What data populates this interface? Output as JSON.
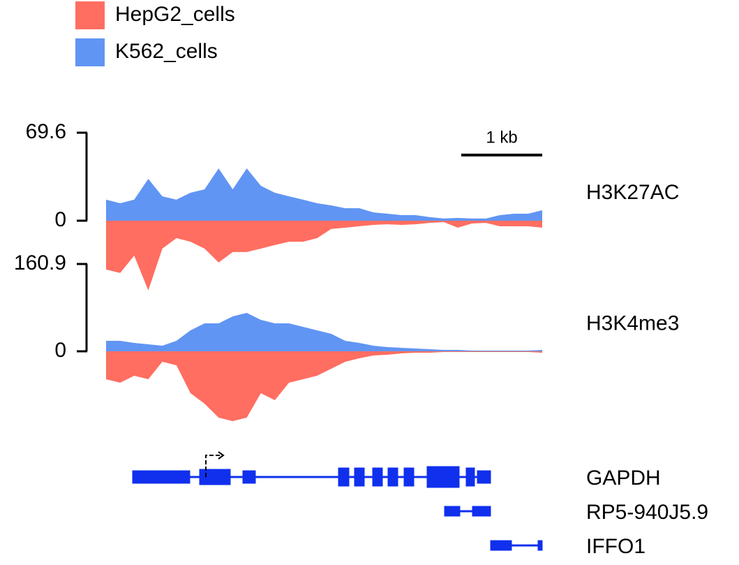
{
  "chart_data": [
    {
      "type": "area",
      "title": "H3K27AC",
      "ylim": [
        0,
        69.6
      ],
      "yticks": [
        0,
        69.6
      ],
      "series": [
        {
          "name": "HepG2_cells",
          "color": "#ff4a3a",
          "values": [
            38.6,
            41.4,
            27.6,
            55.2,
            22.1,
            13.8,
            16.6,
            22.1,
            33.1,
            24.8,
            24.8,
            22.1,
            19.3,
            16.6,
            16.6,
            13.8,
            6.6,
            5.5,
            4.4,
            3.3,
            2.8,
            3.3,
            2.8,
            1.7,
            1.1,
            5.5,
            2.2,
            1.7,
            4.4,
            4.4,
            4.4,
            5.5
          ]
        },
        {
          "name": "K562_cells",
          "color": "#3a7bf0",
          "values": [
            16.6,
            13.8,
            16.6,
            33.1,
            19.3,
            16.6,
            22.1,
            24.8,
            41.4,
            24.8,
            41.4,
            27.6,
            22.1,
            19.3,
            16.6,
            13.8,
            12.1,
            9.9,
            9.9,
            6.6,
            5.5,
            4.4,
            4.4,
            2.8,
            1.7,
            2.2,
            1.7,
            1.7,
            4.4,
            5.5,
            5.5,
            8.3
          ]
        }
      ]
    },
    {
      "type": "area",
      "title": "H3K4me3",
      "ylim": [
        0,
        160.9
      ],
      "yticks": [
        0,
        160.9
      ],
      "series": [
        {
          "name": "HepG2_cells",
          "color": "#ff4a3a",
          "values": [
            51.5,
            57.9,
            45.0,
            51.5,
            19.3,
            25.7,
            77.2,
            96.5,
            122.3,
            128.7,
            122.3,
            77.2,
            90.1,
            57.9,
            51.5,
            45.0,
            32.2,
            19.3,
            12.9,
            7.7,
            6.4,
            3.9,
            2.6,
            2.6,
            1.3,
            1.3,
            1.3,
            1.3,
            1.3,
            1.3,
            1.3,
            2.6
          ]
        },
        {
          "name": "K562_cells",
          "color": "#3a7bf0",
          "values": [
            19.3,
            19.3,
            15.4,
            12.9,
            10.3,
            19.3,
            38.6,
            51.5,
            51.5,
            64.4,
            70.8,
            57.9,
            51.5,
            51.5,
            45.0,
            38.6,
            32.2,
            19.3,
            15.4,
            10.3,
            7.7,
            6.4,
            5.1,
            3.9,
            2.6,
            2.6,
            1.3,
            1.3,
            1.3,
            1.3,
            1.3,
            2.6
          ]
        }
      ]
    }
  ],
  "scale_bar": "1 kb",
  "genes": [
    "GAPDH",
    "RP5-940J5.9",
    "IFFO1"
  ]
}
